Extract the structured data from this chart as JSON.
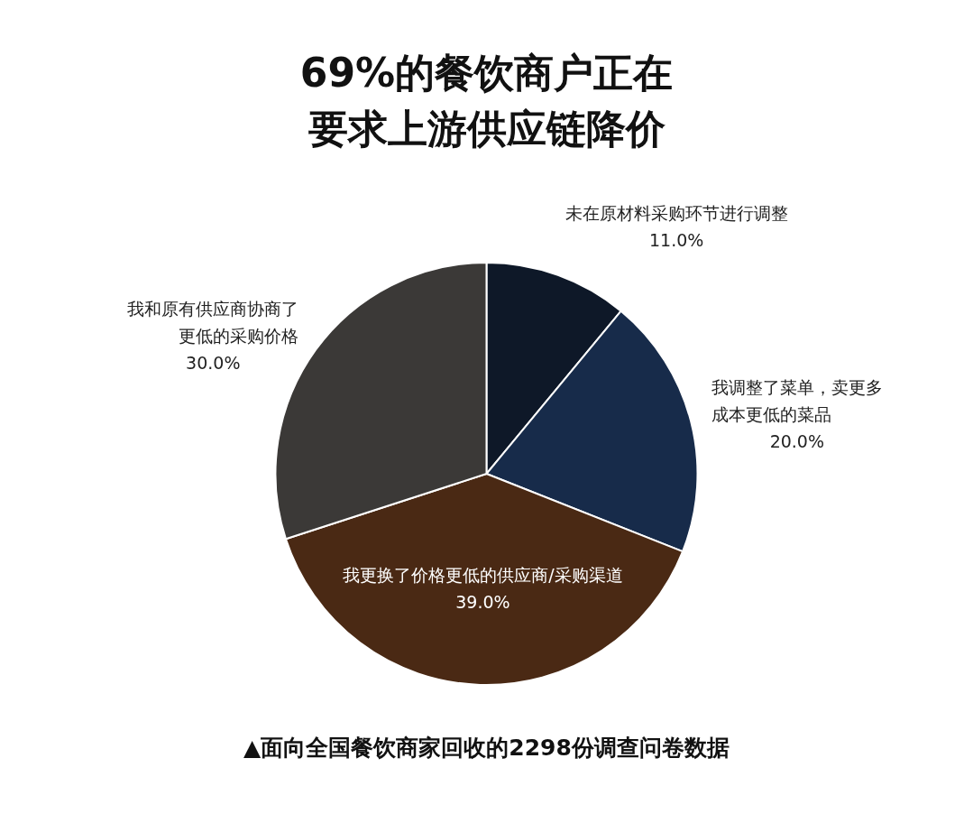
{
  "chart_data": {
    "type": "pie",
    "title": "69%的餐饮商户正在要求上游供应链降价",
    "categories": [
      "未在原材料采购环节进行调整",
      "我调整了菜单，卖更多成本更低的菜品",
      "我更换了价格更低的供应商/采购渠道",
      "我和原有供应商协商了更低的采购价格"
    ],
    "values": [
      11,
      20,
      39,
      30
    ],
    "value_labels": [
      "11.0%",
      "20.0%",
      "39.0%",
      "30.0%"
    ],
    "colors": [
      "#0e1828",
      "#172b4a",
      "#4a2914",
      "#3b3937"
    ],
    "legend": false,
    "annotations": [
      "▲面向全国餐饮商家回收的2298份调查问卷数据"
    ]
  }
}
